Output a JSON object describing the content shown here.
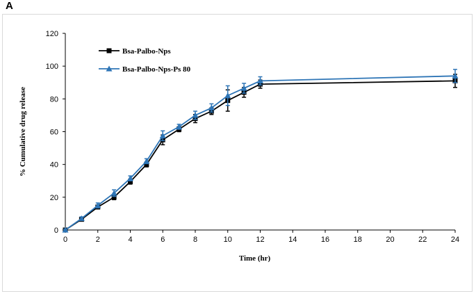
{
  "panel_label": "A",
  "chart_data": {
    "type": "line",
    "title": "",
    "xlabel": "Time (hr)",
    "ylabel": "% Cumulative drug release",
    "xlim": [
      0,
      24
    ],
    "ylim": [
      0,
      120
    ],
    "xticks": [
      "0",
      "2",
      "4",
      "6",
      "8",
      "10",
      "12",
      "14",
      "16",
      "18",
      "20",
      "22",
      "24"
    ],
    "yticks": [
      "0",
      "20",
      "40",
      "60",
      "80",
      "100",
      "120"
    ],
    "grid": false,
    "legend_position": "top-left",
    "series": [
      {
        "name": "Bsa-Palbo-Nps",
        "color": "#000000",
        "marker": "square",
        "x": [
          0,
          1,
          2,
          3,
          4,
          5,
          6,
          7,
          8,
          9,
          10,
          11,
          12,
          24
        ],
        "y": [
          0,
          6.5,
          14,
          20,
          29.5,
          40,
          55,
          61.5,
          68,
          72.5,
          79,
          84,
          89,
          91
        ],
        "error": [
          0.5,
          1,
          1,
          1.5,
          1.5,
          1.5,
          3,
          1.5,
          2.5,
          2,
          6.5,
          3,
          2.5,
          4
        ]
      },
      {
        "name": "Bsa-Palbo-Nps-Ps 80",
        "color": "#2e75b6",
        "marker": "triangle",
        "x": [
          0,
          1,
          2,
          3,
          4,
          5,
          6,
          7,
          8,
          9,
          10,
          11,
          12,
          24
        ],
        "y": [
          0,
          7,
          15,
          22.5,
          31.5,
          42,
          57.5,
          63,
          70,
          74.5,
          82,
          86.5,
          91,
          94
        ],
        "error": [
          0.5,
          1,
          1.5,
          2,
          1.5,
          1.5,
          3,
          1.5,
          2.5,
          2.5,
          6,
          3,
          2.5,
          4
        ]
      }
    ]
  }
}
